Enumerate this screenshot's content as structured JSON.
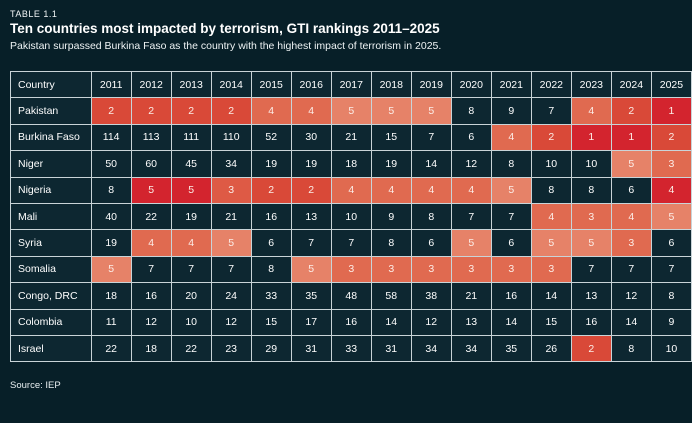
{
  "header": {
    "kicker": "TABLE 1.1",
    "title": "Ten countries most impacted by terrorism, GTI rankings 2011–2025",
    "subtitle": "Pakistan surpassed Burkina Faso as the country with the highest impact of terrorism in 2025."
  },
  "footer": {
    "source": "Source: IEP"
  },
  "chart_data": {
    "type": "table",
    "title": "Ten countries most impacted by terrorism, GTI rankings 2011–2025",
    "columns": [
      "Country",
      "2011",
      "2012",
      "2013",
      "2014",
      "2015",
      "2016",
      "2017",
      "2018",
      "2019",
      "2020",
      "2021",
      "2022",
      "2023",
      "2024",
      "2025"
    ],
    "palette": {
      "c1": "#d3242e",
      "c2": "#d94938",
      "c3": "#de5a45",
      "c4": "#e06a50",
      "c5": "#e68268"
    },
    "cell_background_dark": "#0d2731",
    "grid_color": "#c9d4d8",
    "page_background": "#071f28",
    "rows": [
      {
        "country": "Pakistan",
        "values": [
          2,
          2,
          2,
          2,
          4,
          4,
          5,
          5,
          5,
          8,
          9,
          7,
          4,
          2,
          1
        ],
        "cell_colors": [
          "c2",
          "c2",
          "c2",
          "c2",
          "c4",
          "c4",
          "c5",
          "c5",
          "c5",
          null,
          null,
          null,
          "c4",
          "c2",
          "c1"
        ]
      },
      {
        "country": "Burkina Faso",
        "values": [
          114,
          113,
          111,
          110,
          52,
          30,
          21,
          15,
          7,
          6,
          4,
          2,
          1,
          1,
          2
        ],
        "cell_colors": [
          null,
          null,
          null,
          null,
          null,
          null,
          null,
          null,
          null,
          null,
          "c4",
          "c2",
          "c1",
          "c1",
          "c2"
        ]
      },
      {
        "country": "Niger",
        "values": [
          50,
          60,
          45,
          34,
          19,
          19,
          18,
          19,
          14,
          12,
          8,
          10,
          10,
          5,
          3
        ],
        "cell_colors": [
          null,
          null,
          null,
          null,
          null,
          null,
          null,
          null,
          null,
          null,
          null,
          null,
          null,
          "c5",
          "c4"
        ]
      },
      {
        "country": "Nigeria",
        "values": [
          8,
          5,
          5,
          3,
          2,
          2,
          4,
          4,
          4,
          4,
          5,
          8,
          8,
          6,
          4
        ],
        "cell_colors": [
          null,
          "c1",
          "c1",
          "c3",
          "c2",
          "c2",
          "c4",
          "c4",
          "c4",
          "c4",
          "c5",
          null,
          null,
          null,
          "c1"
        ]
      },
      {
        "country": "Mali",
        "values": [
          40,
          22,
          19,
          21,
          16,
          13,
          10,
          9,
          8,
          7,
          7,
          4,
          3,
          4,
          5
        ],
        "cell_colors": [
          null,
          null,
          null,
          null,
          null,
          null,
          null,
          null,
          null,
          null,
          null,
          "c4",
          "c4",
          "c4",
          "c5"
        ]
      },
      {
        "country": "Syria",
        "values": [
          19,
          4,
          4,
          5,
          6,
          7,
          7,
          8,
          6,
          5,
          6,
          5,
          5,
          3,
          6
        ],
        "cell_colors": [
          null,
          "c4",
          "c4",
          "c5",
          null,
          null,
          null,
          null,
          null,
          "c5",
          null,
          "c5",
          "c5",
          "c4",
          null
        ]
      },
      {
        "country": "Somalia",
        "values": [
          5,
          7,
          7,
          7,
          8,
          5,
          3,
          3,
          3,
          3,
          3,
          3,
          7,
          7,
          7
        ],
        "cell_colors": [
          "c5",
          null,
          null,
          null,
          null,
          "c5",
          "c4",
          "c4",
          "c4",
          "c4",
          "c4",
          "c4",
          null,
          null,
          null
        ]
      },
      {
        "country": "Congo, DRC",
        "values": [
          18,
          16,
          20,
          24,
          33,
          35,
          48,
          58,
          38,
          21,
          16,
          14,
          13,
          12,
          8
        ],
        "cell_colors": [
          null,
          null,
          null,
          null,
          null,
          null,
          null,
          null,
          null,
          null,
          null,
          null,
          null,
          null,
          null
        ]
      },
      {
        "country": "Colombia",
        "values": [
          11,
          12,
          10,
          12,
          15,
          17,
          16,
          14,
          12,
          13,
          14,
          15,
          16,
          14,
          9
        ],
        "cell_colors": [
          null,
          null,
          null,
          null,
          null,
          null,
          null,
          null,
          null,
          null,
          null,
          null,
          null,
          null,
          null
        ]
      },
      {
        "country": "Israel",
        "values": [
          22,
          18,
          22,
          23,
          29,
          31,
          33,
          31,
          34,
          34,
          35,
          26,
          2,
          8,
          10
        ],
        "cell_colors": [
          null,
          null,
          null,
          null,
          null,
          null,
          null,
          null,
          null,
          null,
          null,
          null,
          "c2",
          null,
          null
        ]
      }
    ]
  }
}
